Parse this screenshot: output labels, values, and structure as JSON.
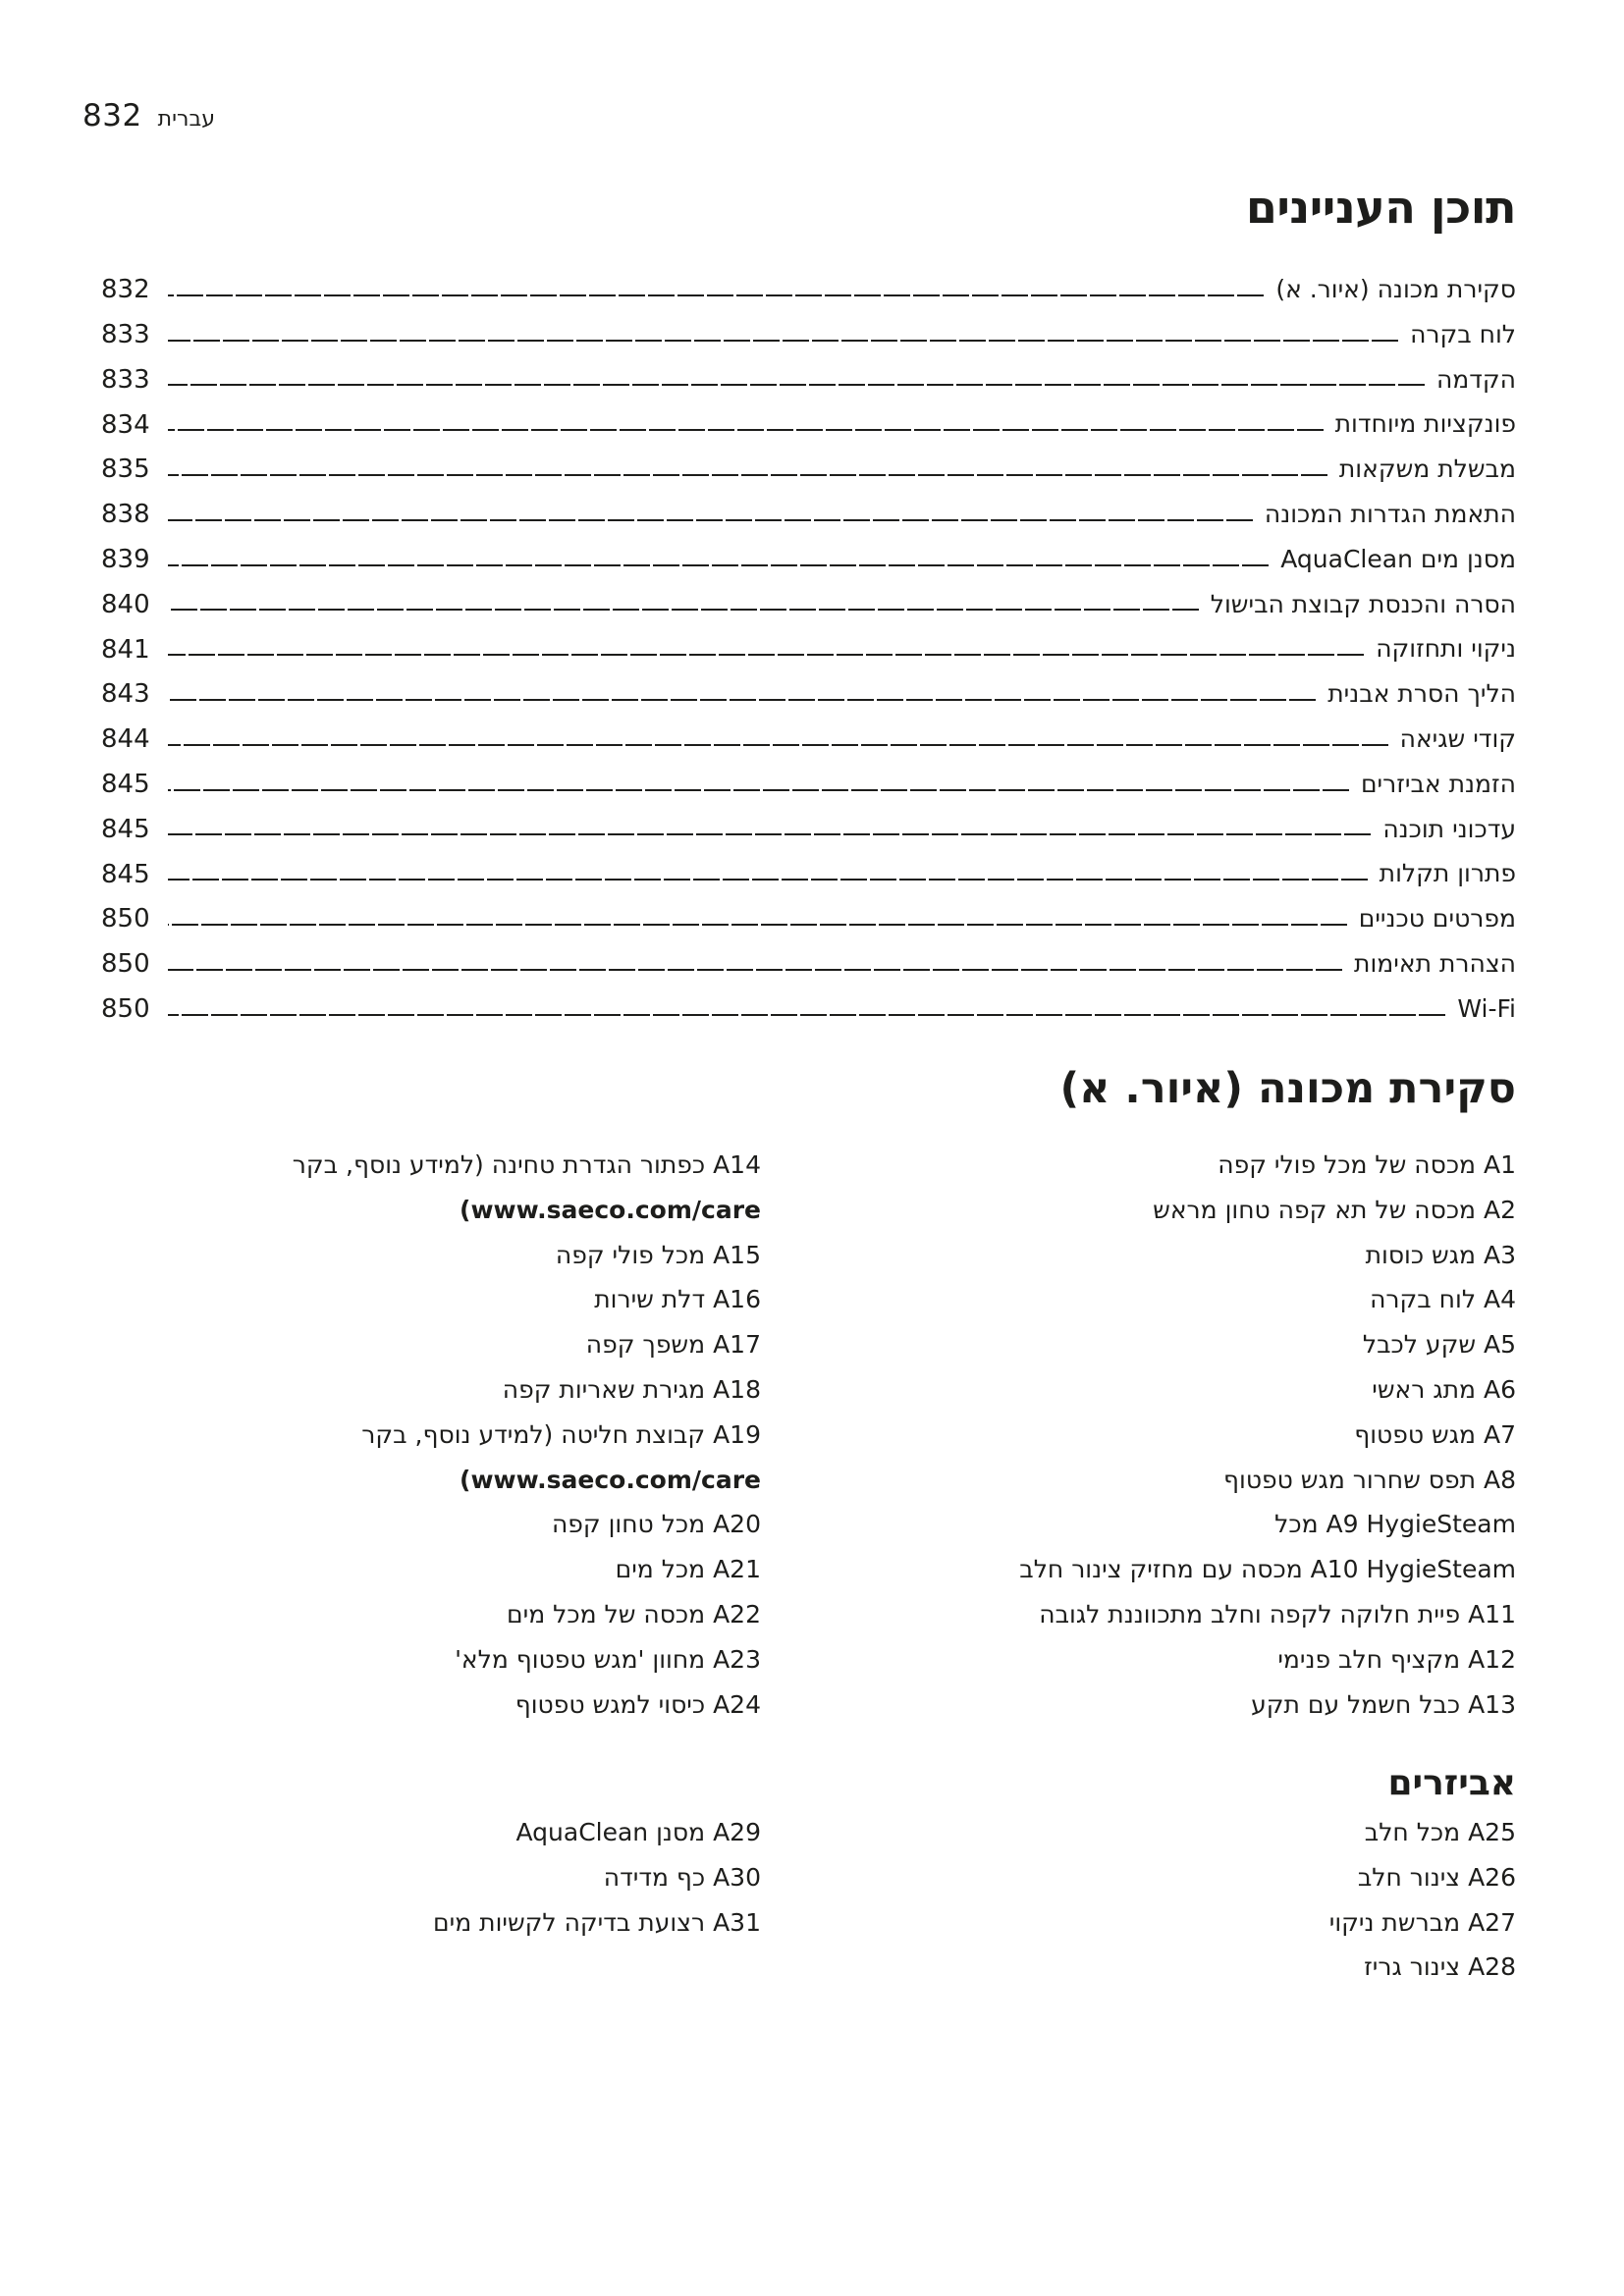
{
  "page_header": {
    "page_number": "832",
    "language_label": "עברית"
  },
  "toc": {
    "title": "תוכן העניינים",
    "entries": [
      {
        "label": "סקירת מכונה (איור. א)",
        "page": "832"
      },
      {
        "label": "לוח בקרה",
        "page": "833"
      },
      {
        "label": "הקדמה",
        "page": "833"
      },
      {
        "label": "פונקציות מיוחדות",
        "page": "834"
      },
      {
        "label": "מבשלת משקאות",
        "page": "835"
      },
      {
        "label": "התאמת הגדרות המכונה",
        "page": "838"
      },
      {
        "label": "מסנן מים AquaClean",
        "page": "839"
      },
      {
        "label": "הסרה והכנסת קבוצת הבישול",
        "page": "840"
      },
      {
        "label": "ניקוי ותחזוקה",
        "page": "841"
      },
      {
        "label": "הליך הסרת אבנית",
        "page": "843"
      },
      {
        "label": "קודי שגיאה",
        "page": "844"
      },
      {
        "label": "הזמנת אביזרים",
        "page": "845"
      },
      {
        "label": "עדכוני תוכנה",
        "page": "845"
      },
      {
        "label": "פתרון תקלות",
        "page": "845"
      },
      {
        "label": "מפרטים טכניים",
        "page": "850"
      },
      {
        "label": "הצהרת תאימות",
        "page": "850"
      },
      {
        "label": "Wi-Fi",
        "page": "850"
      }
    ]
  },
  "overview": {
    "title": "סקירת מכונה (איור. א)",
    "right_column": [
      "A1 מכסה של מכל פולי קפה",
      "A2 מכסה של תא קפה טחון מראש",
      "A3 מגש כוסות",
      "A4 לוח בקרה",
      "A5 שקע לכבל",
      "A6 מתג ראשי",
      "A7 מגש טפטוף",
      "A8 תפס שחרור מגש טפטוף",
      "A9 HygieSteam מכל",
      "A10 HygieSteam מכסה עם מחזיק צינור חלב",
      "A11 פיית חלוקה לקפה וחלב מתכווננת לגובה",
      "A12 מקציף חלב פנימי",
      "A13 כבל חשמל עם תקע"
    ],
    "left_column": [
      {
        "text": "A14 כפתור הגדרת טחינה (למידע נוסף, בקר"
      },
      {
        "text": "www.saeco.com/care)"
      },
      {
        "text": "A15 מכל פולי קפה"
      },
      {
        "text": "A16 דלת שירות"
      },
      {
        "text": "A17 משפך קפה"
      },
      {
        "text": "A18 מגירת שאריות קפה"
      },
      {
        "text": "A19 קבוצת חליטה (למידע נוסף, בקר"
      },
      {
        "text": "www.saeco.com/care)"
      },
      {
        "text": "A20 מכל טחון קפה"
      },
      {
        "text": "A21 מכל מים"
      },
      {
        "text": "A22 מכסה של מכל מים"
      },
      {
        "text": "A23 מחוון 'מגש טפטוף מלא'"
      },
      {
        "text": "A24 כיסוי למגש טפטוף"
      }
    ]
  },
  "accessories": {
    "title": "אביזרים",
    "right_column": [
      "A25 מכל חלב",
      "A26 צינור חלב",
      "A27 מברשת ניקוי",
      "A28 צינור גריז"
    ],
    "left_column": [
      "A29 מסנן AquaClean",
      "A30 כף מדידה",
      "A31 רצועת בדיקה לקשיות מים"
    ]
  },
  "colors": {
    "text": "#1d1d1b",
    "background": "#ffffff"
  }
}
